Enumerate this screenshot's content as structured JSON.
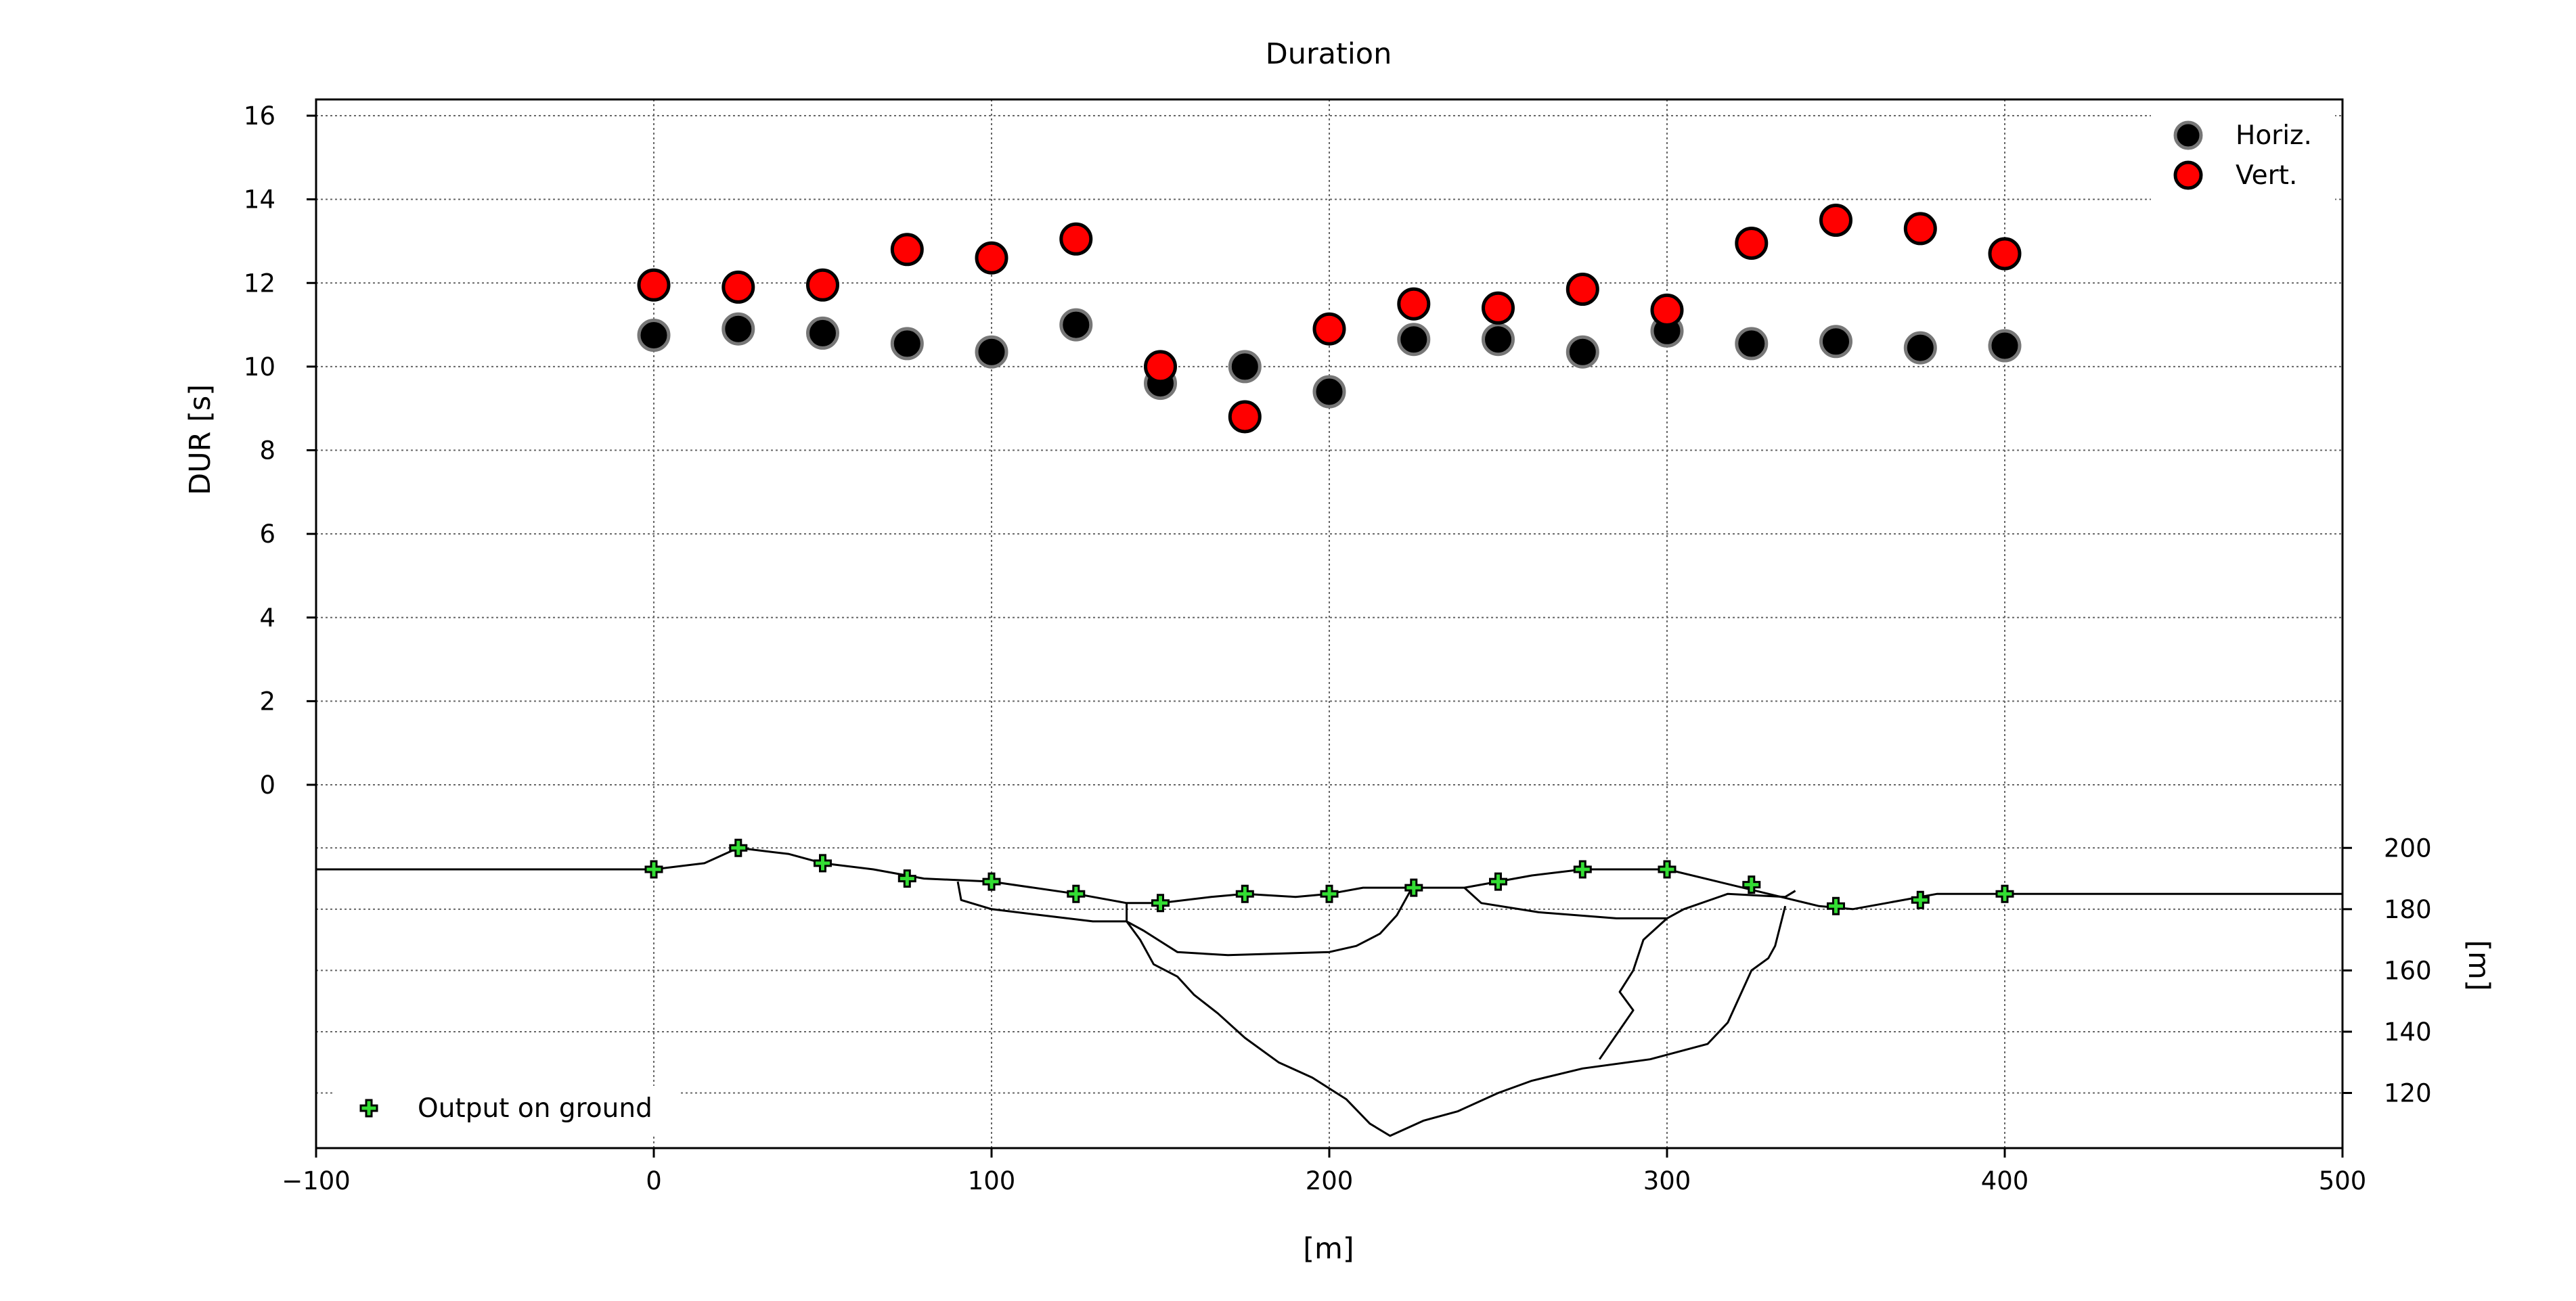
{
  "chart_data": {
    "type": "scatter",
    "title": "Duration",
    "xlabel": "[m]",
    "ylabel": "DUR [s]",
    "ylabel_right": "[m]",
    "xlim": [
      -100,
      500
    ],
    "ylim": [
      0,
      16
    ],
    "x_ticks": [
      "−100",
      "0",
      "100",
      "200",
      "300",
      "400",
      "500"
    ],
    "y_ticks": [
      "0",
      "2",
      "4",
      "6",
      "8",
      "10",
      "12",
      "14",
      "16"
    ],
    "elevation_ticks": [
      "120",
      "140",
      "160",
      "180",
      "200"
    ],
    "grid": true,
    "legend_placement": "top-right",
    "series": [
      {
        "name": "Horiz.",
        "color": "#000000",
        "edge": "#777777",
        "x": [
          0,
          25,
          50,
          75,
          100,
          125,
          150,
          175,
          200,
          225,
          250,
          275,
          300,
          325,
          350,
          375,
          400
        ],
        "values": [
          10.75,
          10.9,
          10.8,
          10.55,
          10.35,
          11.0,
          9.6,
          10.0,
          9.4,
          10.65,
          10.65,
          10.35,
          10.85,
          10.55,
          10.6,
          10.45,
          10.5
        ]
      },
      {
        "name": "Vert.",
        "color": "#ff0000",
        "edge": "#000000",
        "x": [
          0,
          25,
          50,
          75,
          100,
          125,
          150,
          175,
          200,
          225,
          250,
          275,
          300,
          325,
          350,
          375,
          400
        ],
        "values": [
          11.95,
          11.9,
          11.95,
          12.8,
          12.6,
          13.05,
          10.0,
          8.8,
          10.9,
          11.5,
          11.4,
          11.85,
          11.35,
          12.95,
          13.5,
          13.3,
          12.7
        ]
      }
    ],
    "ground_outputs": {
      "name": "Output on ground",
      "color": "#33dd33",
      "x": [
        0,
        25,
        50,
        75,
        100,
        125,
        150,
        175,
        200,
        225,
        250,
        275,
        300,
        325,
        350,
        375,
        400
      ],
      "elevation": [
        193,
        200,
        195,
        190,
        189,
        185,
        182,
        185,
        185,
        187,
        189,
        193,
        193,
        188,
        181,
        183,
        185
      ]
    },
    "profile_lines": [
      [
        [
          -100,
          193
        ],
        [
          0,
          193
        ],
        [
          15,
          195
        ],
        [
          25,
          200
        ],
        [
          40,
          198
        ],
        [
          50,
          195
        ],
        [
          65,
          193
        ],
        [
          80,
          190
        ],
        [
          100,
          189
        ],
        [
          125,
          185
        ],
        [
          140,
          182
        ],
        [
          150,
          182
        ],
        [
          165,
          184
        ],
        [
          175,
          185
        ],
        [
          190,
          184
        ],
        [
          200,
          185
        ],
        [
          210,
          187
        ],
        [
          220,
          187
        ],
        [
          240,
          187
        ],
        [
          260,
          191
        ],
        [
          275,
          193
        ],
        [
          300,
          193
        ],
        [
          315,
          189
        ],
        [
          330,
          185
        ],
        [
          345,
          181
        ],
        [
          355,
          180
        ],
        [
          365,
          182
        ],
        [
          380,
          185
        ],
        [
          500,
          185
        ]
      ],
      [
        [
          90,
          189
        ],
        [
          91,
          183
        ],
        [
          100,
          180
        ],
        [
          115,
          178
        ],
        [
          130,
          176
        ],
        [
          140,
          176
        ],
        [
          144,
          170
        ],
        [
          148,
          162
        ],
        [
          155,
          158
        ],
        [
          160,
          152
        ],
        [
          167,
          146
        ],
        [
          175,
          138
        ],
        [
          185,
          130
        ],
        [
          195,
          125
        ],
        [
          205,
          118
        ],
        [
          212,
          110
        ],
        [
          218,
          106
        ],
        [
          228,
          111
        ],
        [
          238,
          114
        ],
        [
          250,
          120
        ],
        [
          260,
          124
        ],
        [
          275,
          128
        ],
        [
          295,
          131
        ],
        [
          312,
          136
        ],
        [
          318,
          143
        ],
        [
          325,
          160
        ],
        [
          330,
          164
        ],
        [
          332,
          168
        ],
        [
          335,
          181
        ]
      ],
      [
        [
          140,
          182
        ],
        [
          140,
          176
        ],
        [
          145,
          173
        ],
        [
          155,
          166
        ],
        [
          170,
          165
        ],
        [
          200,
          166
        ],
        [
          208,
          168
        ],
        [
          215,
          172
        ],
        [
          220,
          178
        ],
        [
          224,
          186
        ],
        [
          225,
          187
        ]
      ],
      [
        [
          240,
          187
        ],
        [
          245,
          182
        ],
        [
          262,
          179
        ],
        [
          285,
          177
        ],
        [
          300,
          177
        ],
        [
          305,
          180
        ],
        [
          318,
          185
        ],
        [
          335,
          184
        ],
        [
          338,
          186
        ]
      ],
      [
        [
          300,
          177
        ],
        [
          293,
          170
        ],
        [
          290,
          160
        ],
        [
          286,
          153
        ],
        [
          290,
          147
        ],
        [
          280,
          131
        ]
      ]
    ],
    "elevation_range": [
      102,
      210
    ]
  }
}
